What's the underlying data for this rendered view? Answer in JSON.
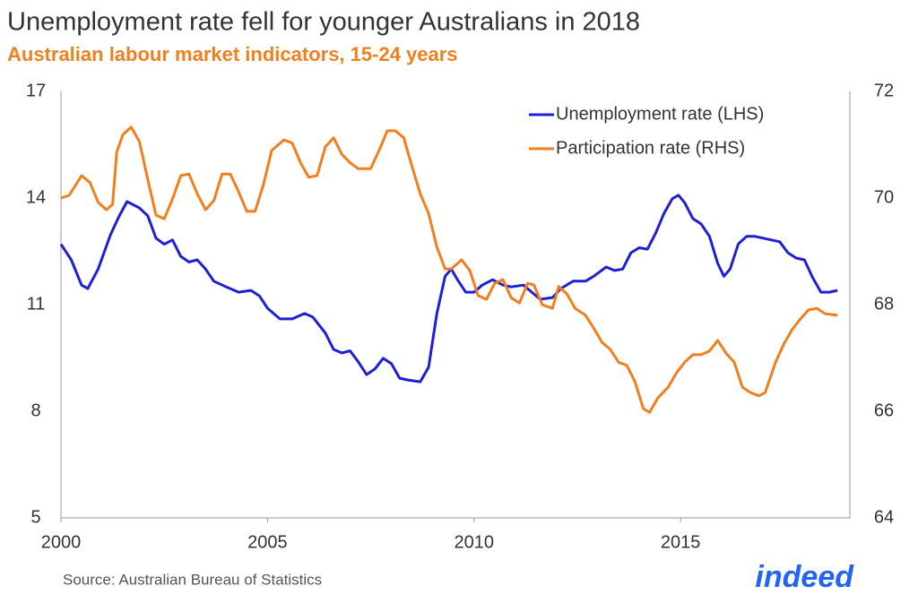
{
  "chart_data": {
    "type": "line",
    "title": "Unemployment rate fell for younger Australians in 2018",
    "subtitle": "Australian labour market indicators, 15-24 years",
    "source": "Source: Australian Bureau of Statistics",
    "logo": "indeed",
    "xlim": [
      2000,
      2019.1
    ],
    "xticks": [
      2000,
      2005,
      2010,
      2015
    ],
    "ylim": [
      5,
      17
    ],
    "yticks": [
      5,
      8,
      11,
      14,
      17
    ],
    "y2lim": [
      64,
      72
    ],
    "y2ticks": [
      64,
      66,
      68,
      70,
      72
    ],
    "grid": false,
    "legend": "top-right",
    "series": [
      {
        "name": "Unemployment rate (LHS)",
        "color": "#1f1fd6",
        "axis": "y",
        "x": [
          2000.0,
          2000.25,
          2000.5,
          2000.65,
          2000.9,
          2001.2,
          2001.4,
          2001.6,
          2001.9,
          2002.1,
          2002.3,
          2002.5,
          2002.7,
          2002.9,
          2003.1,
          2003.3,
          2003.5,
          2003.7,
          2004.0,
          2004.3,
          2004.6,
          2004.8,
          2005.0,
          2005.3,
          2005.6,
          2005.9,
          2006.1,
          2006.4,
          2006.6,
          2006.8,
          2007.0,
          2007.2,
          2007.4,
          2007.6,
          2007.8,
          2008.0,
          2008.2,
          2008.4,
          2008.7,
          2008.9,
          2009.1,
          2009.3,
          2009.45,
          2009.6,
          2009.8,
          2010.0,
          2010.2,
          2010.45,
          2010.7,
          2010.9,
          2011.2,
          2011.4,
          2011.6,
          2011.9,
          2012.1,
          2012.4,
          2012.7,
          2012.9,
          2013.2,
          2013.4,
          2013.6,
          2013.8,
          2014.0,
          2014.2,
          2014.4,
          2014.6,
          2014.8,
          2014.95,
          2015.1,
          2015.3,
          2015.5,
          2015.7,
          2015.9,
          2016.05,
          2016.2,
          2016.4,
          2016.6,
          2016.8,
          2017.0,
          2017.2,
          2017.4,
          2017.6,
          2017.8,
          2018.0,
          2018.2,
          2018.4,
          2018.6,
          2018.8
        ],
        "values": [
          12.7,
          12.26,
          11.55,
          11.45,
          12.0,
          12.97,
          13.47,
          13.9,
          13.72,
          13.5,
          12.87,
          12.7,
          12.82,
          12.36,
          12.2,
          12.26,
          12.0,
          11.66,
          11.5,
          11.35,
          11.4,
          11.25,
          10.9,
          10.6,
          10.6,
          10.75,
          10.65,
          10.2,
          9.74,
          9.64,
          9.7,
          9.39,
          9.03,
          9.19,
          9.49,
          9.34,
          8.93,
          8.88,
          8.83,
          9.24,
          10.75,
          11.8,
          12.0,
          11.7,
          11.35,
          11.35,
          11.55,
          11.7,
          11.55,
          11.5,
          11.55,
          11.35,
          11.15,
          11.2,
          11.45,
          11.66,
          11.66,
          11.8,
          12.06,
          11.96,
          12.0,
          12.46,
          12.6,
          12.56,
          13.02,
          13.57,
          13.98,
          14.08,
          13.87,
          13.42,
          13.27,
          12.92,
          12.16,
          11.8,
          12.0,
          12.71,
          12.92,
          12.92,
          12.87,
          12.82,
          12.77,
          12.46,
          12.31,
          12.26,
          11.76,
          11.35,
          11.35,
          11.4
        ]
      },
      {
        "name": "Participation rate (RHS)",
        "color": "#f07f1e",
        "axis": "y2",
        "x": [
          2000.0,
          2000.2,
          2000.5,
          2000.7,
          2000.9,
          2001.1,
          2001.25,
          2001.35,
          2001.5,
          2001.7,
          2001.9,
          2002.1,
          2002.3,
          2002.5,
          2002.7,
          2002.9,
          2003.1,
          2003.3,
          2003.5,
          2003.7,
          2003.9,
          2004.1,
          2004.3,
          2004.5,
          2004.7,
          2004.9,
          2005.1,
          2005.4,
          2005.6,
          2005.8,
          2006.0,
          2006.2,
          2006.4,
          2006.6,
          2006.8,
          2007.0,
          2007.2,
          2007.5,
          2007.7,
          2007.9,
          2008.1,
          2008.3,
          2008.5,
          2008.7,
          2008.9,
          2009.1,
          2009.3,
          2009.45,
          2009.7,
          2009.9,
          2010.1,
          2010.3,
          2010.5,
          2010.7,
          2010.9,
          2011.1,
          2011.3,
          2011.45,
          2011.65,
          2011.9,
          2012.05,
          2012.25,
          2012.45,
          2012.7,
          2012.9,
          2013.1,
          2013.3,
          2013.5,
          2013.7,
          2013.9,
          2014.1,
          2014.25,
          2014.45,
          2014.7,
          2014.9,
          2015.1,
          2015.3,
          2015.5,
          2015.7,
          2015.9,
          2016.1,
          2016.3,
          2016.5,
          2016.7,
          2016.9,
          2017.05,
          2017.3,
          2017.5,
          2017.7,
          2017.9,
          2018.1,
          2018.3,
          2018.5,
          2018.8
        ],
        "values": [
          70.0,
          70.05,
          70.42,
          70.29,
          69.92,
          69.78,
          69.88,
          70.86,
          71.19,
          71.33,
          71.06,
          70.35,
          69.68,
          69.61,
          69.98,
          70.42,
          70.45,
          70.08,
          69.78,
          69.95,
          70.45,
          70.45,
          70.12,
          69.75,
          69.75,
          70.25,
          70.89,
          71.09,
          71.03,
          70.66,
          70.39,
          70.42,
          70.96,
          71.13,
          70.82,
          70.66,
          70.55,
          70.55,
          70.89,
          71.26,
          71.26,
          71.13,
          70.59,
          70.08,
          69.71,
          69.08,
          68.67,
          68.67,
          68.84,
          68.64,
          68.17,
          68.1,
          68.4,
          68.47,
          68.13,
          68.03,
          68.4,
          68.37,
          68.0,
          67.93,
          68.34,
          68.2,
          67.93,
          67.8,
          67.56,
          67.29,
          67.16,
          66.92,
          66.86,
          66.55,
          66.05,
          65.98,
          66.25,
          66.45,
          66.72,
          66.92,
          67.06,
          67.06,
          67.13,
          67.33,
          67.09,
          66.92,
          66.45,
          66.35,
          66.29,
          66.35,
          66.92,
          67.26,
          67.53,
          67.73,
          67.9,
          67.93,
          67.83,
          67.8
        ]
      }
    ]
  }
}
